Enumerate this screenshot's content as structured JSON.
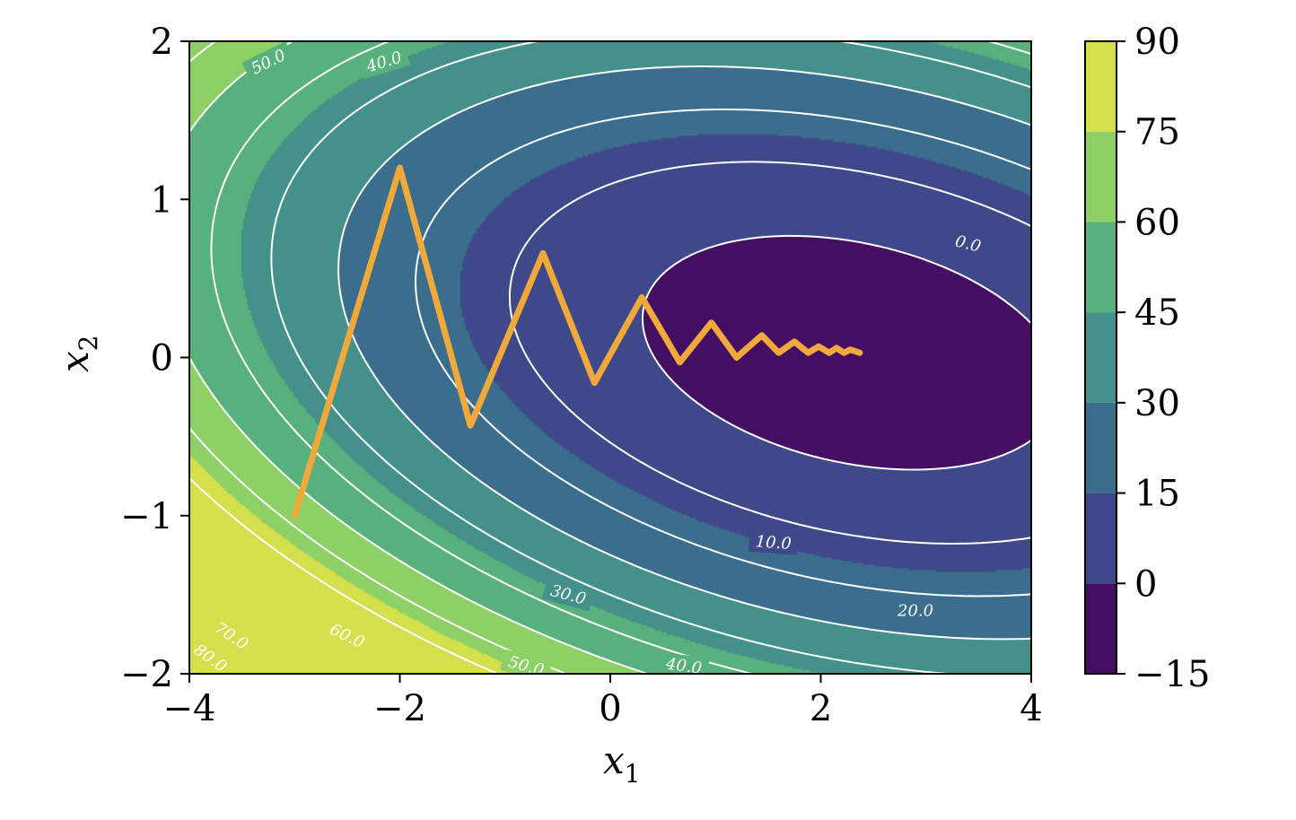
{
  "chart_data": {
    "type": "contour",
    "xlim": [
      -4,
      4
    ],
    "ylim": [
      -2,
      2
    ],
    "xlabel": "x",
    "xlabel_sub": "1",
    "ylabel": "x",
    "ylabel_sub": "2",
    "x_ticks": [
      -4,
      -2,
      0,
      2,
      4
    ],
    "x_tick_labels": [
      "−4",
      "−2",
      "0",
      "2",
      "4"
    ],
    "y_ticks": [
      -2,
      -1,
      0,
      1,
      2
    ],
    "y_tick_labels": [
      "−2",
      "−1",
      "0",
      "1",
      "2"
    ],
    "function": {
      "center": [
        2.3,
        0.03
      ],
      "a": 1.65,
      "b": 12.0,
      "c": 2.6,
      "offset": -6.0
    },
    "filled_levels": [
      -15,
      0,
      15,
      30,
      45,
      60,
      75,
      90
    ],
    "level_colors": [
      "#440f62",
      "#3f4889",
      "#3b6d8c",
      "#43918a",
      "#58b17c",
      "#8cd066",
      "#d4e04b"
    ],
    "line_levels": [
      0,
      10,
      20,
      30,
      40,
      50,
      60,
      70,
      80
    ],
    "contour_labels": [
      {
        "text": "0.0",
        "x": 3.4,
        "y": 0.72,
        "rot": 14
      },
      {
        "text": "10.0",
        "x": 1.55,
        "y": -1.17,
        "rot": 4
      },
      {
        "text": "20.0",
        "x": 2.9,
        "y": -1.6,
        "rot": 0
      },
      {
        "text": "30.0",
        "x": -0.4,
        "y": -1.5,
        "rot": 15
      },
      {
        "text": "40.0",
        "x": 0.7,
        "y": -1.95,
        "rot": 8
      },
      {
        "text": "40.0",
        "x": -2.15,
        "y": 1.87,
        "rot": -17
      },
      {
        "text": "50.0",
        "x": -3.25,
        "y": 1.87,
        "rot": -26
      },
      {
        "text": "50.0",
        "x": -0.8,
        "y": -1.95,
        "rot": 15
      },
      {
        "text": "60.0",
        "x": -2.5,
        "y": -1.76,
        "rot": 25
      },
      {
        "text": "70.0",
        "x": -3.6,
        "y": -1.76,
        "rot": 33
      },
      {
        "text": "80.0",
        "x": -3.8,
        "y": -1.9,
        "rot": 35
      }
    ],
    "path": [
      [
        -3.0,
        -1.0
      ],
      [
        -2.0,
        1.2
      ],
      [
        -1.33,
        -0.43
      ],
      [
        -0.64,
        0.66
      ],
      [
        -0.15,
        -0.16
      ],
      [
        0.3,
        0.38
      ],
      [
        0.66,
        -0.03
      ],
      [
        0.96,
        0.22
      ],
      [
        1.2,
        0.0
      ],
      [
        1.44,
        0.14
      ],
      [
        1.6,
        0.03
      ],
      [
        1.75,
        0.1
      ],
      [
        1.88,
        0.03
      ],
      [
        1.98,
        0.07
      ],
      [
        2.08,
        0.03
      ],
      [
        2.15,
        0.06
      ],
      [
        2.22,
        0.03
      ],
      [
        2.28,
        0.05
      ],
      [
        2.37,
        0.03
      ]
    ],
    "path_color": "#f2a93b",
    "colorbar": {
      "ticks": [
        -15,
        0,
        15,
        30,
        45,
        60,
        75,
        90
      ],
      "tick_labels": [
        "−15",
        "0",
        "15",
        "30",
        "45",
        "60",
        "75",
        "90"
      ]
    }
  }
}
